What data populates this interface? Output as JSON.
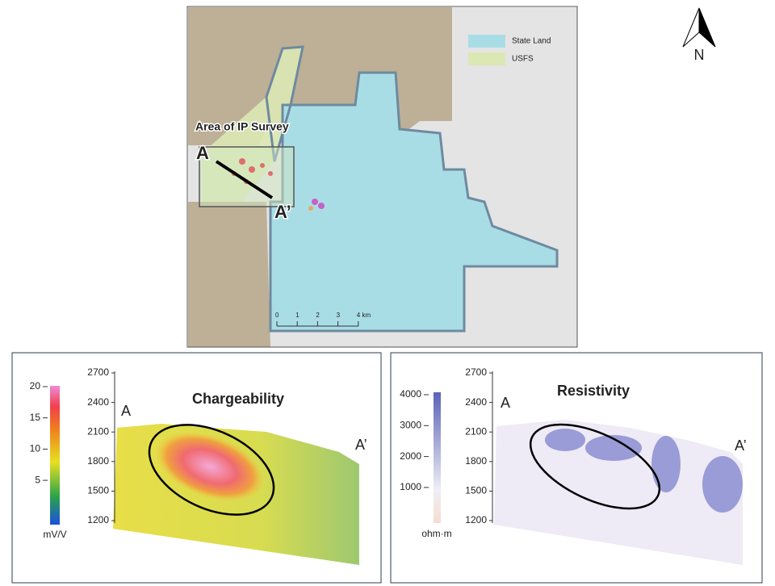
{
  "map": {
    "legend": [
      {
        "label": "State Land",
        "color": "#a9dde6"
      },
      {
        "label": "USFS",
        "color": "#dbe8b4"
      }
    ],
    "north": "N",
    "survey_label": "Area of IP Survey",
    "section_start": "A",
    "section_end": "A’",
    "scale_bar": [
      "0",
      "1",
      "2",
      "3",
      "4 km"
    ]
  },
  "chargeability": {
    "title": "Chargeability",
    "colorbar_ticks": [
      20,
      15,
      10,
      5
    ],
    "unit": "mV/V",
    "elevation_ticks": [
      2700,
      2400,
      2100,
      1800,
      1500,
      1200
    ],
    "start": "A",
    "end": "A’"
  },
  "resistivity": {
    "title": "Resistivity",
    "colorbar_ticks": [
      4000,
      3000,
      2000,
      1000
    ],
    "unit": "ohm·m",
    "elevation_ticks": [
      2700,
      2400,
      2100,
      1800,
      1500,
      1200
    ],
    "start": "A",
    "end": "A’"
  }
}
